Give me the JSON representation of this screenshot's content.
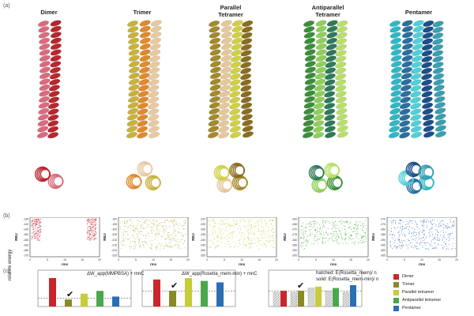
{
  "panel_labels": {
    "a": "(a)",
    "b": "(b)",
    "c": "(c)"
  },
  "columns": [
    {
      "key": "dimer",
      "title": "Dimer",
      "colors": [
        "#d96b7d",
        "#b7272e"
      ]
    },
    {
      "key": "trimer",
      "title": "Trimer",
      "colors": [
        "#c9b23a",
        "#e08a2c",
        "#e8c9a0"
      ]
    },
    {
      "key": "partet",
      "title": "Parallel\nTetramer",
      "colors": [
        "#a38a2a",
        "#e6c79a",
        "#cfd043",
        "#8a6d1f"
      ]
    },
    {
      "key": "antitet",
      "title": "Antiparallel\nTetramer",
      "colors": [
        "#3c8f3a",
        "#8fcf5a",
        "#2f7a5a",
        "#b8df6a"
      ]
    },
    {
      "key": "pent",
      "title": "Pentamer",
      "colors": [
        "#2fb8c4",
        "#2b6f9e",
        "#4fd0d8",
        "#1d4f8a",
        "#3a9fb0"
      ]
    }
  ],
  "scatter": {
    "xlabel": "rms",
    "ylabel": "REU",
    "panels": [
      {
        "color": "#d0454f",
        "yticks": [
          "-135",
          "-140",
          "-145",
          "-150",
          "-155",
          "-160",
          "-165",
          "-170"
        ],
        "xticks": [
          "0",
          "5",
          "10",
          "15",
          "20"
        ]
      },
      {
        "color": "#b8a83a",
        "yticks": [
          "-190",
          "-195",
          "-200",
          "-205",
          "-210",
          "-215",
          "-220",
          "-225"
        ],
        "xticks": [
          "0",
          "5",
          "10",
          "15",
          "20"
        ]
      },
      {
        "color": "#c9c93a",
        "yticks": [
          "-220",
          "-225",
          "-230",
          "-235",
          "-240",
          "-245",
          "-250",
          "-255"
        ],
        "xticks": [
          "0",
          "5",
          "10",
          "15",
          "20"
        ]
      },
      {
        "color": "#4caf3a",
        "yticks": [
          "-260",
          "-265",
          "-270",
          "-275",
          "-280",
          "-285",
          "-290",
          "-295"
        ],
        "xticks": [
          "0",
          "5",
          "10",
          "15",
          "20"
        ]
      },
      {
        "color": "#3466b0",
        "yticks": [
          "-270",
          "-275",
          "-280",
          "-285",
          "-290",
          "-295",
          "-300",
          "-305"
        ],
        "xticks": [
          "0",
          "5",
          "10",
          "15",
          "20"
        ]
      }
    ]
  },
  "bars": {
    "ylabel": "relative energy",
    "checkmark": "✔",
    "panels": [
      {
        "title": "ΔW_app(MMPBSA) + mnC"
      },
      {
        "title": "ΔW_app(Rosetta_mem-min) + mnC"
      },
      {
        "title": "hatched: E(Rosetta_mem)/ n",
        "subtitle": "solid: E(Rosetta_mem-min)/ n"
      }
    ],
    "legend": [
      {
        "label": "Dimer",
        "color": "#c8262c"
      },
      {
        "label": "Trimer",
        "color": "#8a8a25"
      },
      {
        "label": "Parallel tetramer",
        "color": "#c6cc3a"
      },
      {
        "label": "Antiparallel tetramer",
        "color": "#4aa84a"
      },
      {
        "label": "Pentamer",
        "color": "#2a6fb3"
      }
    ]
  },
  "chart_data": [
    {
      "type": "bar",
      "title": "ΔW_app(MMPBSA) + mnC",
      "categories": [
        "Dimer",
        "Trimer",
        "Parallel tetramer",
        "Antiparallel tetramer",
        "Pentamer"
      ],
      "values": [
        1.0,
        0.25,
        0.45,
        0.55,
        0.35
      ],
      "reference_line": 0.3,
      "ylabel": "relative energy"
    },
    {
      "type": "bar",
      "title": "ΔW_app(Rosetta_mem-min) + mnC",
      "categories": [
        "Dimer",
        "Trimer",
        "Parallel tetramer",
        "Antiparallel tetramer",
        "Pentamer"
      ],
      "values": [
        0.95,
        0.55,
        1.0,
        0.9,
        0.85
      ],
      "reference_line": 0.55
    },
    {
      "type": "bar",
      "title": "hatched: E(Rosetta_mem)/ n; solid: E(Rosetta_mem-min)/ n",
      "categories": [
        "Dimer",
        "Trimer",
        "Parallel tetramer",
        "Antiparallel tetramer",
        "Pentamer"
      ],
      "series": [
        {
          "name": "hatched",
          "values": [
            0.5,
            0.5,
            0.65,
            0.55,
            0.5
          ]
        },
        {
          "name": "solid",
          "values": [
            0.55,
            0.55,
            0.7,
            0.65,
            0.75
          ]
        }
      ],
      "reference_line": 0.55
    }
  ]
}
